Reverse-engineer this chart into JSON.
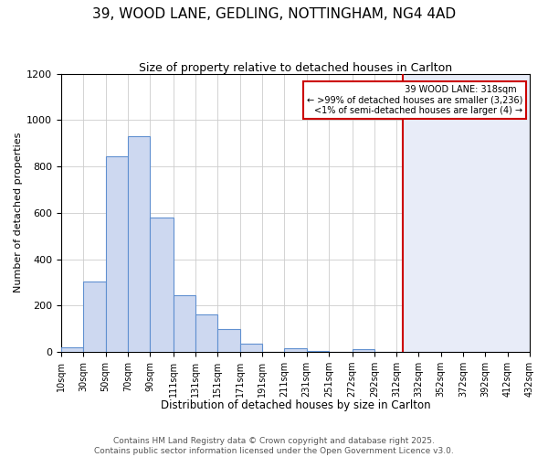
{
  "title": "39, WOOD LANE, GEDLING, NOTTINGHAM, NG4 4AD",
  "subtitle": "Size of property relative to detached houses in Carlton",
  "xlabel": "Distribution of detached houses by size in Carlton",
  "ylabel": "Number of detached properties",
  "footer1": "Contains HM Land Registry data © Crown copyright and database right 2025.",
  "footer2": "Contains public sector information licensed under the Open Government Licence v3.0.",
  "bin_edges": [
    10,
    30,
    50,
    70,
    90,
    111,
    131,
    151,
    171,
    191,
    211,
    231,
    251,
    272,
    292,
    312,
    332,
    352,
    372,
    392,
    412
  ],
  "bar_heights": [
    20,
    305,
    845,
    930,
    580,
    245,
    160,
    100,
    35,
    0,
    15,
    5,
    0,
    10,
    0,
    0,
    0,
    0,
    0,
    0
  ],
  "bar_color": "#cdd8f0",
  "bar_edge_color": "#6090d0",
  "bar_linewidth": 0.8,
  "grid_color": "#cccccc",
  "red_line_x": 318,
  "red_line_color": "#cc0000",
  "highlight_bg_color": "#e8ecf8",
  "legend_title": "39 WOOD LANE: 318sqm",
  "legend_line1": "← >99% of detached houses are smaller (3,236)",
  "legend_line2": "<1% of semi-detached houses are larger (4) →",
  "legend_border_color": "#cc0000",
  "ylim": [
    0,
    1200
  ],
  "yticks": [
    0,
    200,
    400,
    600,
    800,
    1000,
    1200
  ],
  "tick_label_size": 8,
  "title_fontsize": 11,
  "subtitle_fontsize": 9,
  "xlabel_fontsize": 8.5,
  "ylabel_fontsize": 8,
  "legend_fontsize": 7,
  "footer_fontsize": 6.5,
  "background_color": "#ffffff"
}
